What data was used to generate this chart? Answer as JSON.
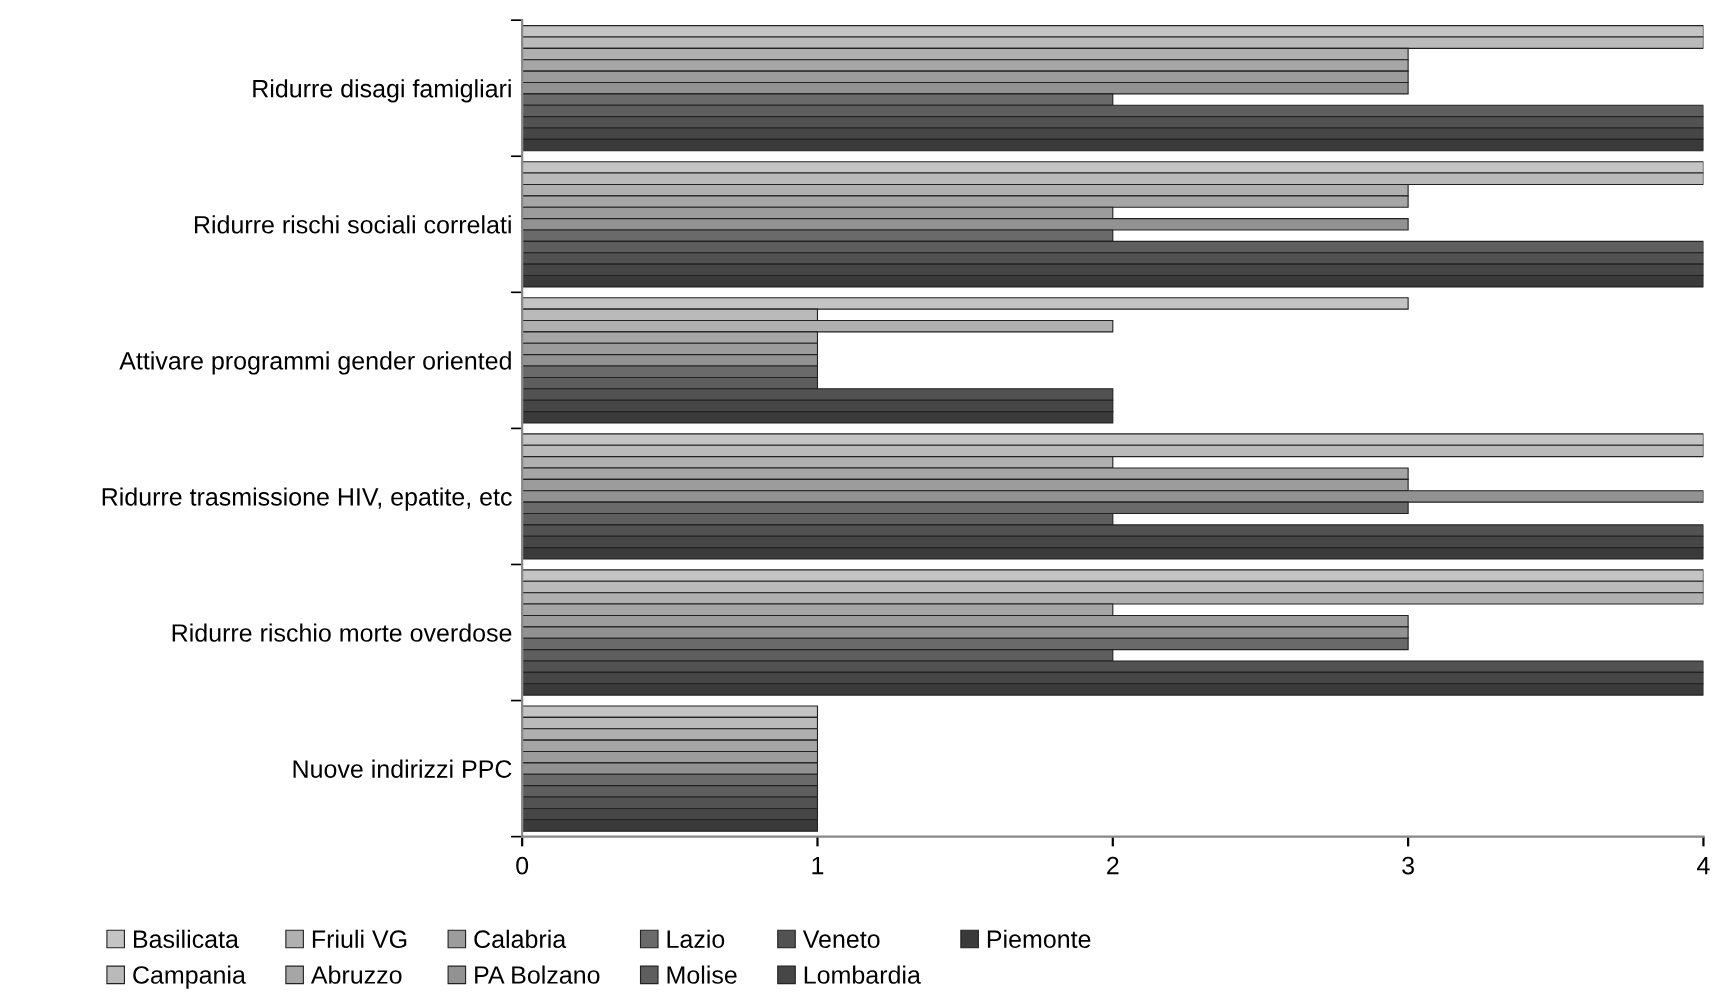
{
  "chart_data": {
    "type": "bar",
    "orientation": "horizontal",
    "categories": [
      "Ridurre disagi famigliari",
      "Ridurre rischi sociali correlati",
      "Attivare programmi gender oriented",
      "Ridurre trasmissione HIV, epatite, etc",
      "Ridurre rischio morte overdose",
      "Nuove indirizzi PPC"
    ],
    "series": [
      {
        "name": "Basilicata",
        "color": "#c4c4c4",
        "values": [
          4,
          4,
          3,
          4,
          4,
          1
        ]
      },
      {
        "name": "Campania",
        "color": "#bababa",
        "values": [
          4,
          4,
          1,
          4,
          4,
          1
        ]
      },
      {
        "name": "Friuli VG",
        "color": "#b0b0b0",
        "values": [
          3,
          3,
          2,
          2,
          4,
          1
        ]
      },
      {
        "name": "Abruzzo",
        "color": "#a6a6a6",
        "values": [
          3,
          3,
          1,
          3,
          2,
          1
        ]
      },
      {
        "name": "Calabria",
        "color": "#9c9c9c",
        "values": [
          3,
          2,
          1,
          3,
          3,
          1
        ]
      },
      {
        "name": "PA Bolzano",
        "color": "#929292",
        "values": [
          3,
          3,
          1,
          4,
          3,
          1
        ]
      },
      {
        "name": "Lazio",
        "color": "#6a6a6a",
        "values": [
          2,
          2,
          1,
          3,
          3,
          1
        ]
      },
      {
        "name": "Molise",
        "color": "#5e5e5e",
        "values": [
          4,
          4,
          1,
          2,
          2,
          1
        ]
      },
      {
        "name": "Veneto",
        "color": "#525252",
        "values": [
          4,
          4,
          2,
          4,
          4,
          1
        ]
      },
      {
        "name": "Lombardia",
        "color": "#464646",
        "values": [
          4,
          4,
          2,
          4,
          4,
          1
        ]
      },
      {
        "name": "Piemonte",
        "color": "#3a3a3a",
        "values": [
          4,
          4,
          2,
          4,
          4,
          1
        ]
      }
    ],
    "xlim": [
      0,
      4
    ],
    "xticks": [
      0,
      1,
      2,
      3,
      4
    ],
    "grid": false,
    "legend": "bottom"
  }
}
